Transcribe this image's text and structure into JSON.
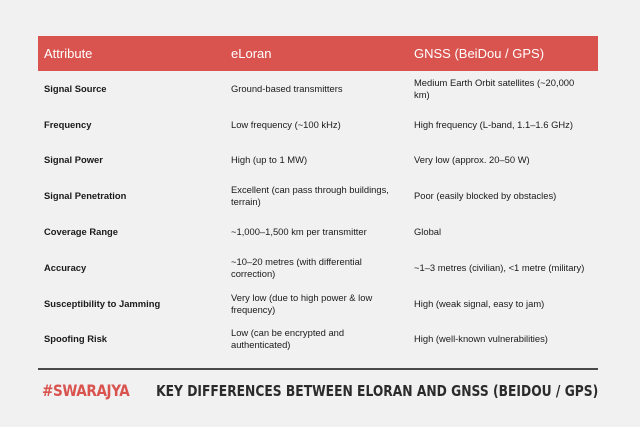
{
  "table": {
    "headers": [
      "Attribute",
      "eLoran",
      "GNSS (BeiDou / GPS)"
    ],
    "rows": [
      [
        "Signal Source",
        "Ground-based transmitters",
        "Medium Earth Orbit satellites (~20,000 km)"
      ],
      [
        "Frequency",
        "Low frequency (~100 kHz)",
        "High frequency (L-band, 1.1–1.6 GHz)"
      ],
      [
        "Signal Power",
        "High (up to 1 MW)",
        "Very low (approx. 20–50 W)"
      ],
      [
        "Signal Penetration",
        "Excellent (can pass through buildings, terrain)",
        "Poor (easily blocked by obstacles)"
      ],
      [
        "Coverage Range",
        "~1,000–1,500 km per transmitter",
        "Global"
      ],
      [
        "Accuracy",
        "~10–20 metres (with differential correction)",
        "~1–3 metres (civilian), <1 metre (military)"
      ],
      [
        "Susceptibility to Jamming",
        "Very low (due to high power & low frequency)",
        "High (weak signal, easy to jam)"
      ],
      [
        "Spoofing Risk",
        "Low (can be encrypted and authenticated)",
        "High (well-known vulnerabilities)"
      ]
    ]
  },
  "footer": {
    "brand": "#SWARAJYA",
    "caption": "KEY DIFFERENCES BETWEEN ELORAN AND GNSS (BEIDOU / GPS)"
  },
  "colors": {
    "header_bg": "#d9534f",
    "page_bg": "#f1f1f1",
    "brand": "#d9534f"
  }
}
